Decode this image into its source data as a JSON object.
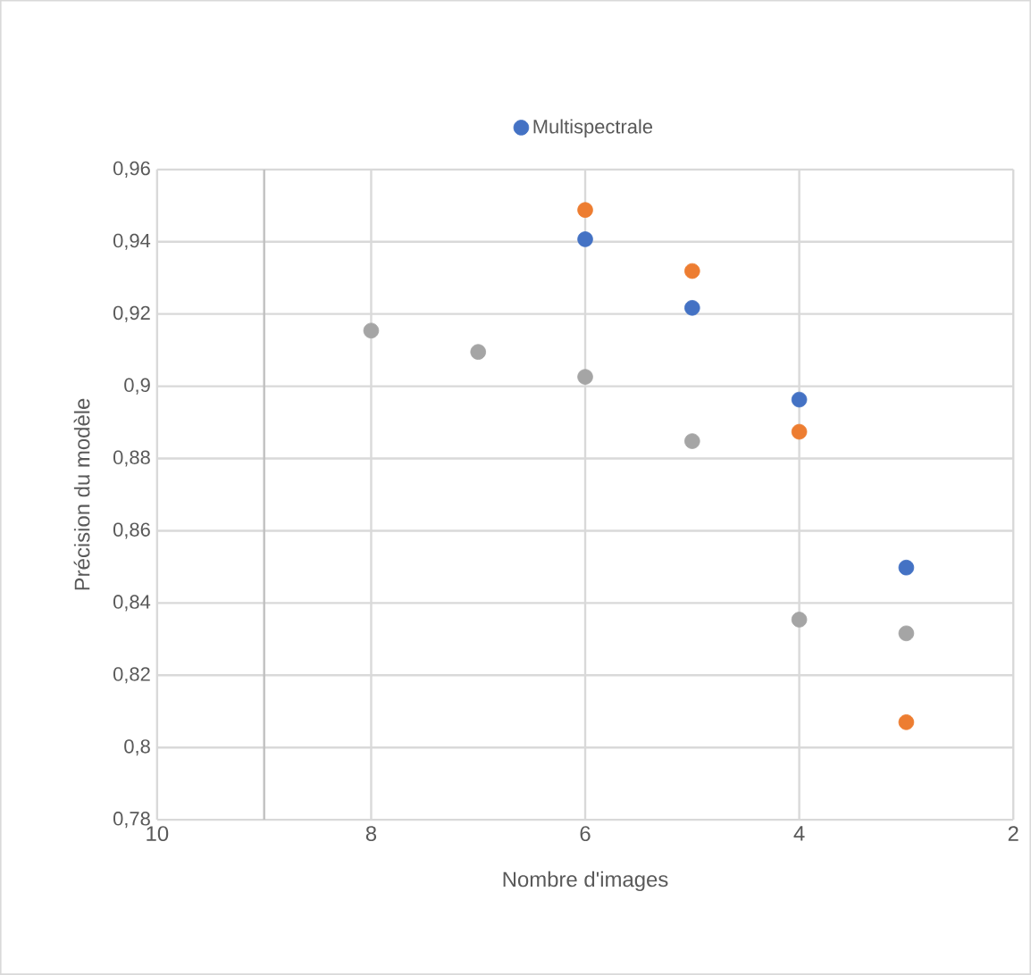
{
  "chart_data": {
    "type": "scatter",
    "xlabel": "Nombre d'images",
    "ylabel": "Précision du modèle",
    "xlim": [
      10,
      2
    ],
    "xticks": [
      10,
      8,
      6,
      4,
      2
    ],
    "ylim": [
      0.78,
      0.96
    ],
    "yticks": [
      {
        "value": 0.78,
        "label": "0,78"
      },
      {
        "value": 0.8,
        "label": "0,8"
      },
      {
        "value": 0.82,
        "label": "0,82"
      },
      {
        "value": 0.84,
        "label": "0,84"
      },
      {
        "value": 0.86,
        "label": "0,86"
      },
      {
        "value": 0.88,
        "label": "0,88"
      },
      {
        "value": 0.9,
        "label": "0,9"
      },
      {
        "value": 0.92,
        "label": "0,92"
      },
      {
        "value": 0.94,
        "label": "0,94"
      },
      {
        "value": 0.96,
        "label": "0,96"
      }
    ],
    "grid": true,
    "legend": "top",
    "marker": "circle",
    "ref_lines": [
      {
        "axis": "x",
        "value": 9,
        "color": "#bfbfbf"
      }
    ],
    "series": [
      {
        "name": "Multispectrale",
        "color": "#4472c4",
        "x": [
          6,
          5,
          4,
          3
        ],
        "values": [
          0.9407,
          0.9217,
          0.8963,
          0.8498
        ]
      },
      {
        "color": "#ed7d31",
        "x": [
          6,
          5,
          4,
          3
        ],
        "values": [
          0.9488,
          0.9319,
          0.8874,
          0.807
        ]
      },
      {
        "color": "#a5a5a5",
        "x": [
          8,
          7,
          6,
          5,
          4,
          3
        ],
        "values": [
          0.9154,
          0.9095,
          0.9026,
          0.8848,
          0.8354,
          0.8316
        ]
      }
    ]
  }
}
